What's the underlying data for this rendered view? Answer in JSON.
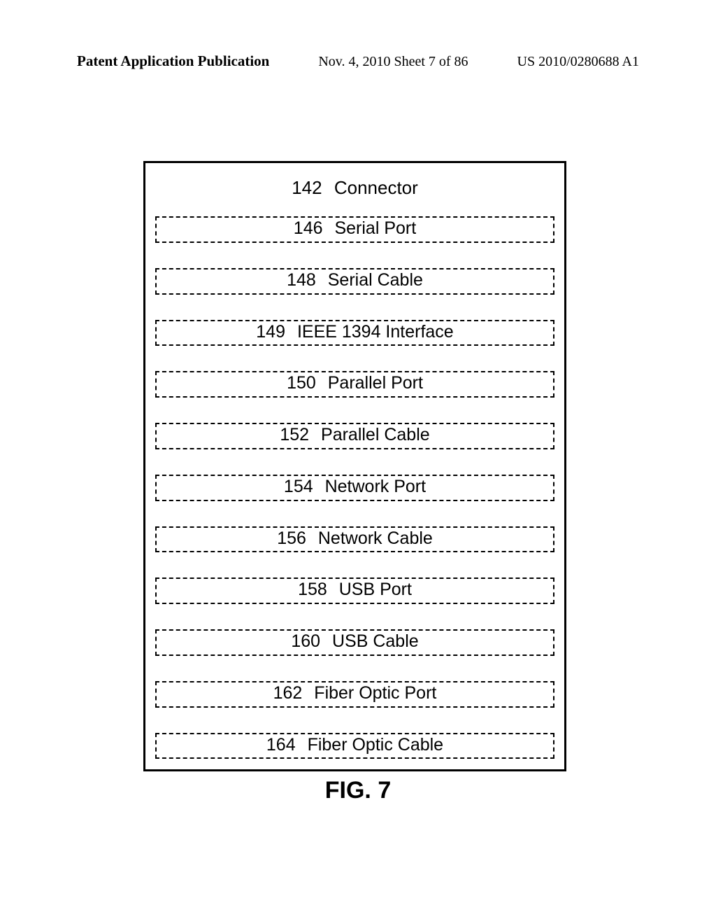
{
  "header": {
    "left": "Patent Application Publication",
    "center": "Nov. 4, 2010  Sheet 7 of 86",
    "right": "US 2010/0280688 A1"
  },
  "diagram": {
    "title_num": "142",
    "title_label": "Connector",
    "items": [
      {
        "num": "146",
        "label": "Serial Port"
      },
      {
        "num": "148",
        "label": "Serial Cable"
      },
      {
        "num": "149",
        "label": "IEEE 1394 Interface"
      },
      {
        "num": "150",
        "label": "Parallel Port"
      },
      {
        "num": "152",
        "label": "Parallel Cable"
      },
      {
        "num": "154",
        "label": "Network Port"
      },
      {
        "num": "156",
        "label": "Network Cable"
      },
      {
        "num": "158",
        "label": "USB Port"
      },
      {
        "num": "160",
        "label": "USB Cable"
      },
      {
        "num": "162",
        "label": "Fiber Optic Port"
      },
      {
        "num": "164",
        "label": "Fiber Optic Cable"
      }
    ]
  },
  "figure_label": "FIG. 7"
}
